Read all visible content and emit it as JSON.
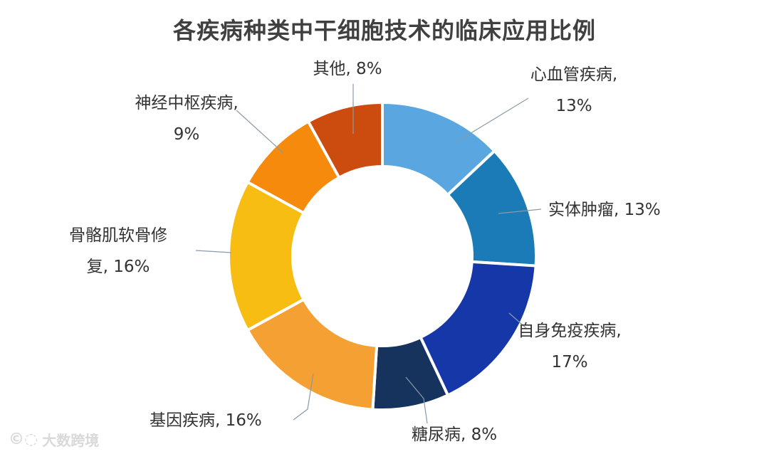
{
  "chart_data": {
    "type": "pie",
    "donut": true,
    "title": "各疾病种类中干细胞技术的临床应用比例",
    "slices": [
      {
        "label_lines": [
          "心血管疾病,",
          "13%"
        ],
        "value": 13,
        "color": "#5aa6e0"
      },
      {
        "label_lines": [
          "实体肿瘤, 13%"
        ],
        "value": 13,
        "color": "#1a7bb6"
      },
      {
        "label_lines": [
          "自身免疫疾病,",
          "17%"
        ],
        "value": 17,
        "color": "#1637a8"
      },
      {
        "label_lines": [
          "糖尿病, 8%"
        ],
        "value": 8,
        "color": "#16335e"
      },
      {
        "label_lines": [
          "基因疾病, 16%"
        ],
        "value": 16,
        "color": "#f5a033"
      },
      {
        "label_lines": [
          "骨骼肌软骨修",
          "复, 16%"
        ],
        "value": 16,
        "color": "#f8bd12"
      },
      {
        "label_lines": [
          "神经中枢疾病,",
          "9%"
        ],
        "value": 9,
        "color": "#f58a0c"
      },
      {
        "label_lines": [
          "其他, 8%"
        ],
        "value": 8,
        "color": "#cc4b0e"
      }
    ]
  },
  "watermark": {
    "text": "大数跨境",
    "icon": "speech-bubble-logo-icon"
  }
}
